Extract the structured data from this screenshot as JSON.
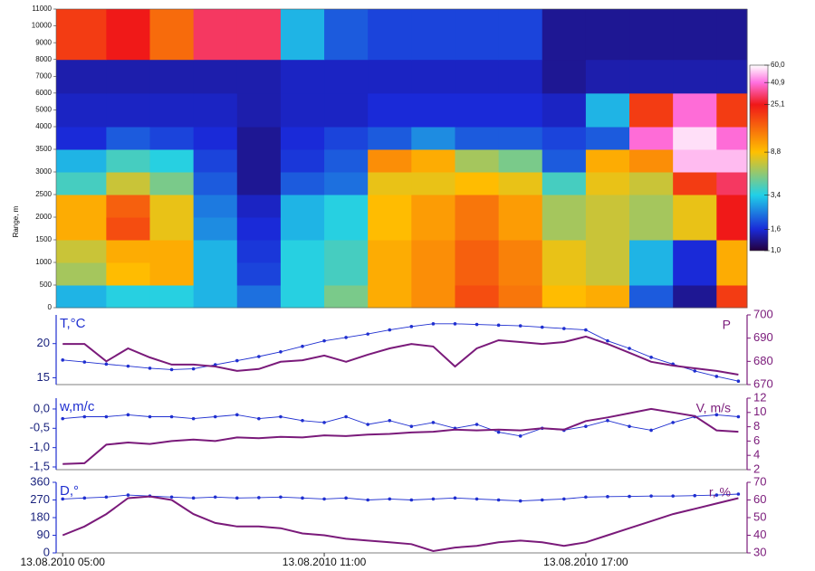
{
  "chart_data": [
    {
      "type": "heatmap",
      "ylabel": "Range, m",
      "xlim": [
        4.85,
        20.7
      ],
      "xbins": [
        4.85,
        6,
        7,
        8,
        9,
        10,
        11,
        12,
        13,
        14,
        15,
        16,
        17,
        18,
        19,
        20,
        20.7
      ],
      "ybins": [
        0,
        500,
        1000,
        1500,
        2000,
        2500,
        3000,
        3500,
        4000,
        6000,
        8000,
        11000
      ],
      "values": [
        [
          3,
          3.5,
          3.5,
          3,
          2.2,
          3.5,
          5,
          10,
          12,
          18,
          14,
          9,
          10,
          2,
          1.3,
          20
        ],
        [
          6,
          9,
          10,
          3,
          1.8,
          3.5,
          4,
          10,
          12,
          16,
          13,
          8,
          7,
          3,
          1.6,
          10
        ],
        [
          7,
          10,
          10,
          3,
          1.7,
          3.5,
          4,
          10,
          12,
          16,
          13,
          8,
          7,
          3,
          1.6,
          10
        ],
        [
          10,
          18,
          8,
          2.5,
          1.6,
          3,
          3.5,
          9,
          11,
          14,
          11,
          6,
          7,
          6,
          8,
          25
        ],
        [
          10,
          16,
          8,
          2.3,
          1.5,
          3,
          3.5,
          9,
          11,
          14,
          11,
          6,
          7,
          6,
          8,
          25
        ],
        [
          4,
          7,
          5,
          2,
          1.3,
          2,
          2.2,
          8,
          8,
          9,
          8,
          4,
          8,
          7,
          20,
          30
        ],
        [
          3,
          4,
          3.5,
          1.8,
          1.3,
          1.7,
          2,
          12,
          10,
          6,
          5,
          2,
          10,
          12,
          50,
          50
        ],
        [
          1.6,
          2,
          1.8,
          1.6,
          1.3,
          1.6,
          1.8,
          2,
          2.5,
          2,
          2,
          1.8,
          2,
          40,
          55,
          40
        ],
        [
          1.5,
          1.5,
          1.5,
          1.5,
          1.4,
          1.5,
          1.5,
          1.6,
          1.6,
          1.6,
          1.6,
          1.5,
          3,
          20,
          40,
          20
        ],
        [
          1.4,
          1.4,
          1.4,
          1.4,
          1.4,
          1.5,
          1.5,
          1.5,
          1.5,
          1.5,
          1.5,
          1.3,
          1.4,
          1.4,
          1.4,
          1.4
        ],
        [
          20,
          25,
          15,
          30,
          30,
          3,
          2,
          1.8,
          1.8,
          1.8,
          1.8,
          1.3,
          1.3,
          1.3,
          1.3,
          1.3
        ]
      ],
      "ylim": [
        0,
        11000
      ],
      "yticks": [
        0,
        500,
        1000,
        1500,
        2000,
        2500,
        3000,
        3500,
        4000,
        5000,
        6000,
        7000,
        8000,
        9000,
        10000,
        11000
      ],
      "colorbar": {
        "log": true,
        "lim": [
          1,
          60
        ],
        "ticks": [
          {
            "value": 1.0,
            "label": "1,0"
          },
          {
            "value": 1.6,
            "label": "1,6"
          },
          {
            "value": 3.4,
            "label": "3,4"
          },
          {
            "value": 8.8,
            "label": "8,8"
          },
          {
            "value": 25.1,
            "label": "25,1"
          },
          {
            "value": 40.9,
            "label": "40,9"
          },
          {
            "value": 60.0,
            "label": "60,0"
          }
        ],
        "colors": [
          "#24003c",
          "#1a2ad8",
          "#20d0e8",
          "#ffc000",
          "#f01818",
          "#ff70e0",
          "#ffffff"
        ]
      }
    },
    {
      "type": "line",
      "xlim": [
        4.85,
        20.7
      ],
      "x": [
        5,
        5.5,
        6,
        6.5,
        7,
        7.5,
        8,
        8.5,
        9,
        9.5,
        10,
        10.5,
        11,
        11.5,
        12,
        12.5,
        13,
        13.5,
        14,
        14.5,
        15,
        15.5,
        16,
        16.5,
        17,
        17.5,
        18,
        18.5,
        19,
        19.5,
        20,
        20.5
      ],
      "ylim": [
        14,
        24.2
      ],
      "yticks": [
        15,
        20
      ],
      "y2lim": [
        670,
        700
      ],
      "y2ticks": [
        670,
        680,
        690,
        700
      ],
      "series": [
        {
          "name": "T,°C",
          "color": "#1f2fd0",
          "marker": true,
          "values": [
            17.6,
            17.3,
            17.0,
            16.7,
            16.4,
            16.2,
            16.3,
            16.9,
            17.5,
            18.1,
            18.8,
            19.6,
            20.4,
            20.9,
            21.4,
            22.0,
            22.5,
            22.9,
            22.9,
            22.8,
            22.7,
            22.6,
            22.4,
            22.2,
            22.0,
            20.4,
            19.3,
            18.0,
            17.0,
            16.0,
            15.2,
            14.5
          ]
        },
        {
          "name": "P",
          "color": "#7a1a7a",
          "axis": "y2",
          "values": [
            687.5,
            687.5,
            680.0,
            685.6,
            681.7,
            678.6,
            678.6,
            677.8,
            675.9,
            676.7,
            679.8,
            680.5,
            682.5,
            679.8,
            682.9,
            685.6,
            687.5,
            686.4,
            677.8,
            685.6,
            689.1,
            688.3,
            687.5,
            688.3,
            690.7,
            687.5,
            683.7,
            679.8,
            678.2,
            677.0,
            675.9,
            674.3
          ]
        }
      ]
    },
    {
      "type": "line",
      "xlim": [
        4.85,
        20.7
      ],
      "x": [
        5,
        5.5,
        6,
        6.5,
        7,
        7.5,
        8,
        8.5,
        9,
        9.5,
        10,
        10.5,
        11,
        11.5,
        12,
        12.5,
        13,
        13.5,
        14,
        14.5,
        15,
        15.5,
        16,
        16.5,
        17,
        17.5,
        18,
        18.5,
        19,
        19.5,
        20,
        20.5
      ],
      "ylim": [
        -1.57,
        0.28
      ],
      "yticks": [
        {
          "value": -1.5,
          "label": "-1,5"
        },
        {
          "value": -1.0,
          "label": "-1,0"
        },
        {
          "value": -0.5,
          "label": "-0,5"
        },
        {
          "value": 0.0,
          "label": "0,0"
        }
      ],
      "y2lim": [
        2,
        12
      ],
      "y2ticks": [
        2,
        4,
        6,
        8,
        10,
        12
      ],
      "series": [
        {
          "name": "w,m/c",
          "color": "#1f2fd0",
          "marker": true,
          "values": [
            -0.25,
            -0.2,
            -0.2,
            -0.15,
            -0.2,
            -0.2,
            -0.25,
            -0.2,
            -0.15,
            -0.25,
            -0.2,
            -0.3,
            -0.35,
            -0.2,
            -0.4,
            -0.3,
            -0.45,
            -0.35,
            -0.5,
            -0.4,
            -0.6,
            -0.7,
            -0.5,
            -0.55,
            -0.45,
            -0.3,
            -0.45,
            -0.55,
            -0.35,
            -0.2,
            -0.15,
            -0.2
          ]
        },
        {
          "name": "V, m/s",
          "color": "#7a1a7a",
          "axis": "y2",
          "values": [
            2.8,
            2.9,
            5.5,
            5.8,
            5.6,
            6.0,
            6.2,
            6.0,
            6.5,
            6.4,
            6.6,
            6.5,
            6.8,
            6.7,
            6.9,
            7.0,
            7.2,
            7.3,
            7.6,
            7.5,
            7.6,
            7.5,
            7.8,
            7.6,
            8.8,
            9.3,
            9.9,
            10.5,
            10.0,
            9.5,
            7.5,
            7.3
          ]
        }
      ]
    },
    {
      "type": "line",
      "xlim": [
        4.85,
        20.7
      ],
      "x": [
        5,
        5.5,
        6,
        6.5,
        7,
        7.5,
        8,
        8.5,
        9,
        9.5,
        10,
        10.5,
        11,
        11.5,
        12,
        12.5,
        13,
        13.5,
        14,
        14.5,
        15,
        15.5,
        16,
        16.5,
        17,
        17.5,
        18,
        18.5,
        19,
        19.5,
        20,
        20.5
      ],
      "ylim": [
        0,
        360
      ],
      "yticks": [
        0,
        90,
        180,
        270,
        360
      ],
      "y2lim": [
        30,
        70
      ],
      "y2ticks": [
        30,
        40,
        50,
        60,
        70
      ],
      "xticks": [
        {
          "value": 5,
          "label": "13.08.2010 05:00"
        },
        {
          "value": 11,
          "label": "13.08.2010 11:00"
        },
        {
          "value": 17,
          "label": "13.08.2010 17:00"
        }
      ],
      "series": [
        {
          "name": "D,°",
          "color": "#1f2fd0",
          "marker": true,
          "values": [
            275,
            280,
            285,
            295,
            290,
            285,
            280,
            285,
            280,
            282,
            285,
            280,
            275,
            280,
            270,
            275,
            270,
            275,
            280,
            275,
            270,
            265,
            270,
            275,
            285,
            287,
            288,
            290,
            290,
            292,
            295,
            300
          ]
        },
        {
          "name": "r, %",
          "color": "#7a1a7a",
          "axis": "y2",
          "values": [
            40,
            45,
            52,
            61,
            62,
            60,
            52,
            47,
            45,
            45,
            44,
            41,
            40,
            38,
            37,
            36,
            35,
            31,
            33,
            34,
            36,
            37,
            36,
            34,
            36,
            40,
            44,
            48,
            52,
            55,
            58,
            61
          ]
        }
      ]
    }
  ]
}
